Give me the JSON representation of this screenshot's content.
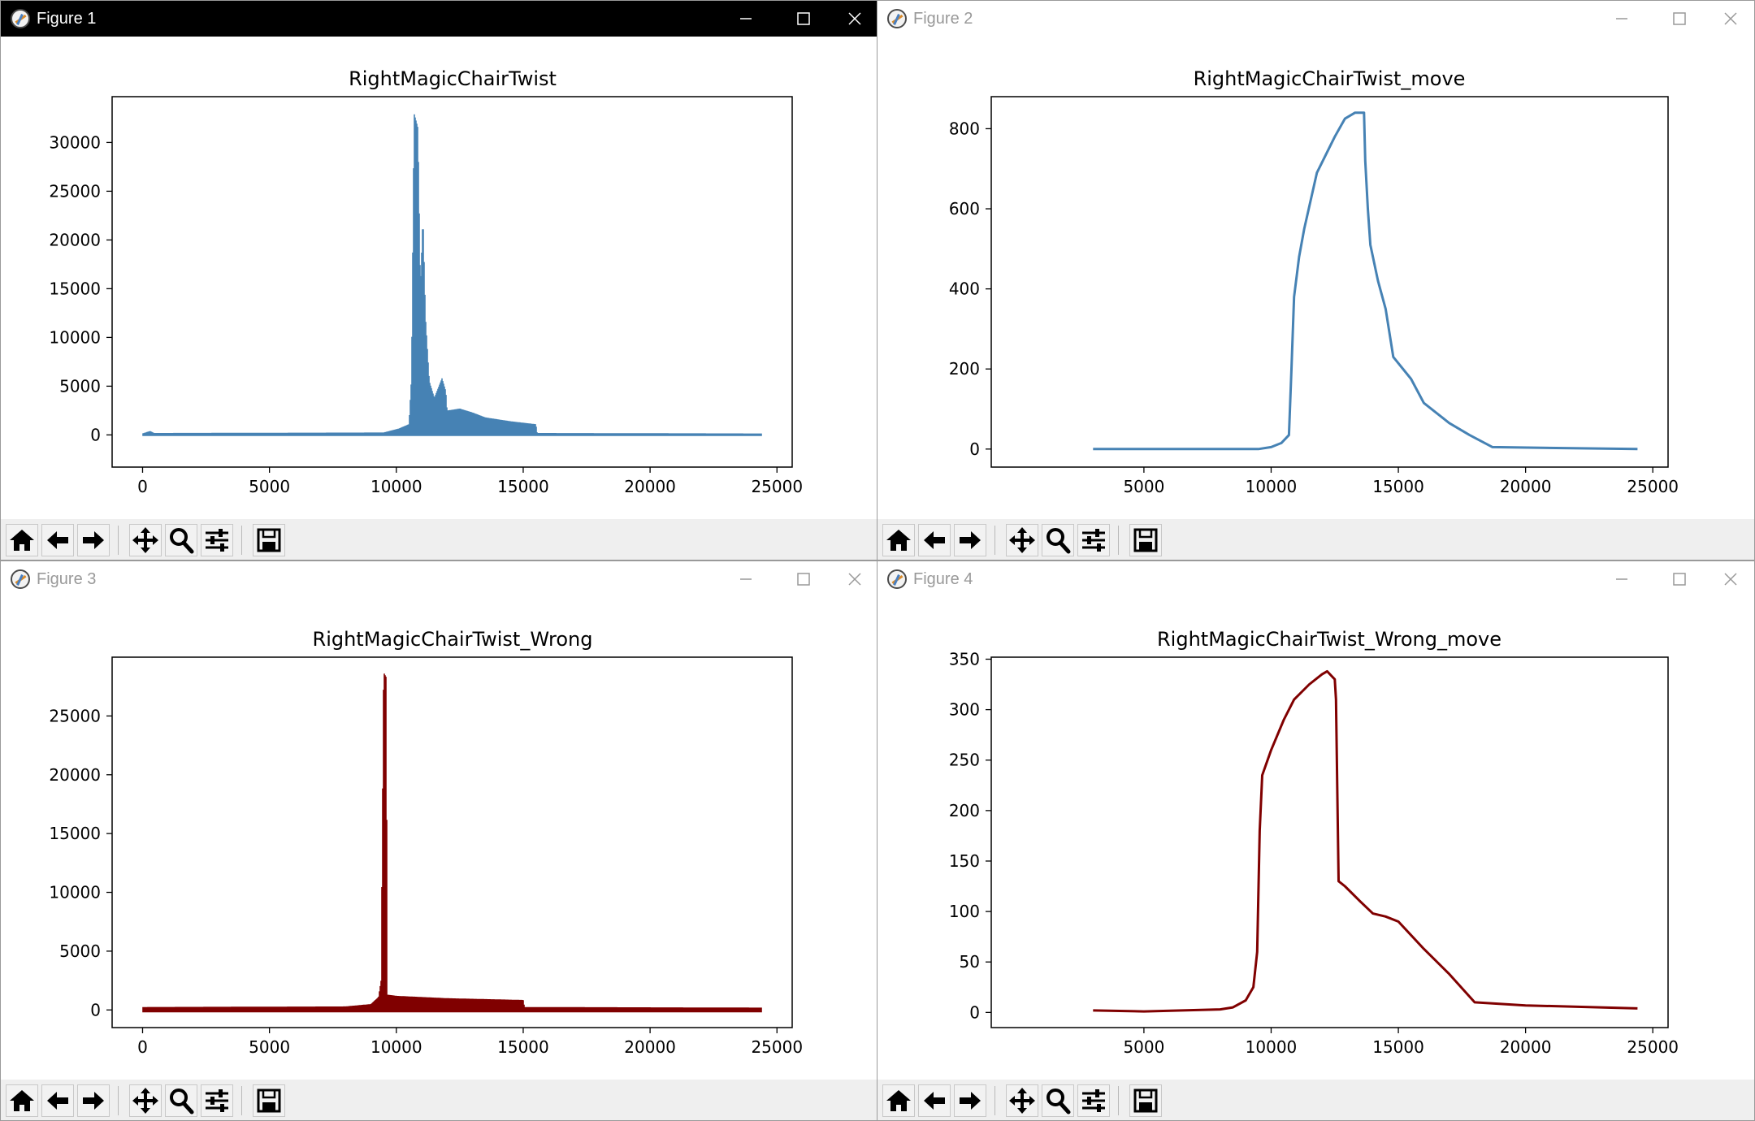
{
  "windows": [
    {
      "title": "Figure 1",
      "active": true,
      "chart_data": {
        "type": "line",
        "title": "RightMagicChairTwist",
        "color": "#4682b4",
        "signal": "noisy",
        "xlim": [
          -1200,
          25600
        ],
        "ylim": [
          -3300,
          34700
        ],
        "xticks": [
          0,
          5000,
          10000,
          15000,
          20000,
          25000
        ],
        "yticks": [
          0,
          5000,
          10000,
          15000,
          20000,
          25000,
          30000
        ],
        "x_range": [
          0,
          24400
        ],
        "baseline_amplitude": 120,
        "envelope": [
          [
            0,
            150
          ],
          [
            300,
            400
          ],
          [
            450,
            200
          ],
          [
            9500,
            250
          ],
          [
            10100,
            650
          ],
          [
            10500,
            1100
          ],
          [
            10600,
            6000
          ],
          [
            10700,
            33000
          ],
          [
            10800,
            32000
          ],
          [
            10850,
            31500
          ],
          [
            10950,
            15000
          ],
          [
            11050,
            22500
          ],
          [
            11150,
            12000
          ],
          [
            11300,
            5500
          ],
          [
            11500,
            3800
          ],
          [
            11800,
            5800
          ],
          [
            11950,
            4500
          ],
          [
            12000,
            2500
          ],
          [
            12500,
            2700
          ],
          [
            13000,
            2300
          ],
          [
            13500,
            1800
          ],
          [
            14500,
            1400
          ],
          [
            15500,
            1100
          ],
          [
            15550,
            200
          ],
          [
            24400,
            150
          ]
        ]
      }
    },
    {
      "title": "Figure 2",
      "active": false,
      "chart_data": {
        "type": "line",
        "title": "RightMagicChairTwist_move",
        "color": "#4682b4",
        "signal": "smooth",
        "xlim": [
          -1000,
          25600
        ],
        "ylim": [
          -45,
          880
        ],
        "xticks": [
          5000,
          10000,
          15000,
          20000,
          25000
        ],
        "yticks": [
          0,
          200,
          400,
          600,
          800
        ],
        "points": [
          [
            3000,
            0
          ],
          [
            9500,
            0
          ],
          [
            10000,
            5
          ],
          [
            10400,
            15
          ],
          [
            10700,
            35
          ],
          [
            10800,
            200
          ],
          [
            10900,
            380
          ],
          [
            11100,
            480
          ],
          [
            11300,
            550
          ],
          [
            11800,
            690
          ],
          [
            12500,
            780
          ],
          [
            12900,
            825
          ],
          [
            13300,
            840
          ],
          [
            13650,
            840
          ],
          [
            13700,
            720
          ],
          [
            13800,
            600
          ],
          [
            13900,
            510
          ],
          [
            14200,
            420
          ],
          [
            14500,
            350
          ],
          [
            14800,
            230
          ],
          [
            15500,
            175
          ],
          [
            16000,
            115
          ],
          [
            17000,
            65
          ],
          [
            17800,
            35
          ],
          [
            18700,
            5
          ],
          [
            24400,
            0
          ]
        ]
      }
    },
    {
      "title": "Figure 3",
      "active": false,
      "chart_data": {
        "type": "line",
        "title": "RightMagicChairTwist_Wrong",
        "color": "#800000",
        "signal": "noisy",
        "xlim": [
          -1200,
          25600
        ],
        "ylim": [
          -1500,
          30000
        ],
        "xticks": [
          0,
          5000,
          10000,
          15000,
          20000,
          25000
        ],
        "yticks": [
          0,
          5000,
          10000,
          15000,
          20000,
          25000
        ],
        "x_range": [
          0,
          24400
        ],
        "baseline_amplitude": 200,
        "envelope": [
          [
            0,
            250
          ],
          [
            8000,
            300
          ],
          [
            8500,
            400
          ],
          [
            9000,
            500
          ],
          [
            9300,
            1100
          ],
          [
            9400,
            2500
          ],
          [
            9500,
            28700
          ],
          [
            9600,
            28300
          ],
          [
            9650,
            1300
          ],
          [
            10000,
            1200
          ],
          [
            12000,
            1000
          ],
          [
            15000,
            850
          ],
          [
            15050,
            250
          ],
          [
            24400,
            200
          ]
        ]
      }
    },
    {
      "title": "Figure 4",
      "active": false,
      "chart_data": {
        "type": "line",
        "title": "RightMagicChairTwist_Wrong_move",
        "color": "#800000",
        "signal": "smooth",
        "xlim": [
          -1000,
          25600
        ],
        "ylim": [
          -15,
          352
        ],
        "xticks": [
          5000,
          10000,
          15000,
          20000,
          25000
        ],
        "yticks": [
          0,
          50,
          100,
          150,
          200,
          250,
          300,
          350
        ],
        "points": [
          [
            3000,
            2
          ],
          [
            5000,
            1
          ],
          [
            8000,
            3
          ],
          [
            8500,
            5
          ],
          [
            9000,
            12
          ],
          [
            9300,
            25
          ],
          [
            9450,
            60
          ],
          [
            9550,
            180
          ],
          [
            9650,
            235
          ],
          [
            10000,
            260
          ],
          [
            10500,
            290
          ],
          [
            10900,
            310
          ],
          [
            11500,
            325
          ],
          [
            12000,
            335
          ],
          [
            12200,
            338
          ],
          [
            12500,
            330
          ],
          [
            12550,
            310
          ],
          [
            12650,
            130
          ],
          [
            12900,
            125
          ],
          [
            13500,
            110
          ],
          [
            14000,
            98
          ],
          [
            14500,
            95
          ],
          [
            15000,
            90
          ],
          [
            16000,
            63
          ],
          [
            17000,
            38
          ],
          [
            18000,
            10
          ],
          [
            20000,
            7
          ],
          [
            24400,
            4
          ]
        ]
      }
    }
  ]
}
